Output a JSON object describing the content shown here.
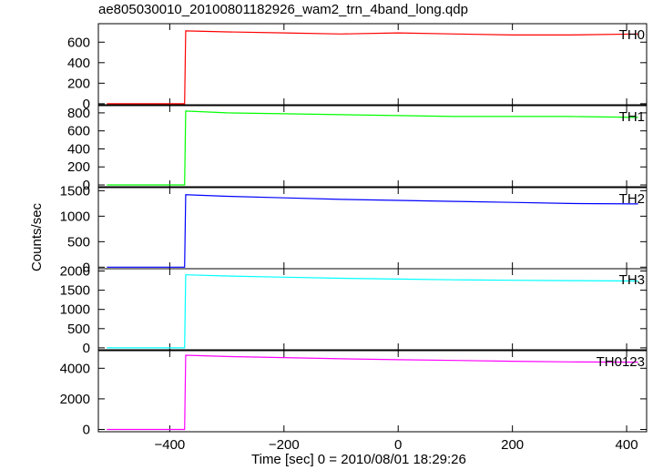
{
  "chart_data": {
    "type": "line",
    "title": "ae805030010_20100801182926_wam2_trn_4band_long.qdp",
    "xlabel": "Time [sec] 0 = 2010/08/01 18:29:26",
    "ylabel": "Counts/sec",
    "xlim": [
      -525,
      435
    ],
    "xticks": [
      -400,
      -200,
      0,
      200,
      400
    ],
    "xtick_labels": [
      "−400",
      "−200",
      "0",
      "200",
      "400"
    ],
    "panels": [
      {
        "name": "TH0",
        "color": "#ff0000",
        "ylim": [
          -10,
          780
        ],
        "yticks": [
          0,
          200,
          400,
          600
        ],
        "points": [
          [
            -510,
            0
          ],
          [
            -374,
            0
          ],
          [
            -372,
            710
          ],
          [
            -300,
            700
          ],
          [
            -200,
            690
          ],
          [
            -100,
            680
          ],
          [
            0,
            690
          ],
          [
            100,
            680
          ],
          [
            200,
            670
          ],
          [
            300,
            670
          ],
          [
            420,
            680
          ]
        ]
      },
      {
        "name": "TH1",
        "color": "#00ff00",
        "ylim": [
          -20,
          880
        ],
        "yticks": [
          0,
          200,
          400,
          600,
          800
        ],
        "points": [
          [
            -510,
            0
          ],
          [
            -374,
            0
          ],
          [
            -372,
            820
          ],
          [
            -300,
            800
          ],
          [
            -200,
            790
          ],
          [
            -100,
            780
          ],
          [
            0,
            770
          ],
          [
            100,
            760
          ],
          [
            200,
            760
          ],
          [
            300,
            760
          ],
          [
            420,
            750
          ]
        ]
      },
      {
        "name": "TH2",
        "color": "#0000ff",
        "ylim": [
          -30,
          1560
        ],
        "yticks": [
          0,
          500,
          1000,
          1500
        ],
        "points": [
          [
            -510,
            0
          ],
          [
            -374,
            0
          ],
          [
            -372,
            1420
          ],
          [
            -300,
            1390
          ],
          [
            -200,
            1360
          ],
          [
            -100,
            1330
          ],
          [
            0,
            1310
          ],
          [
            100,
            1290
          ],
          [
            200,
            1270
          ],
          [
            300,
            1250
          ],
          [
            420,
            1240
          ]
        ]
      },
      {
        "name": "TH3",
        "color": "#00ffff",
        "ylim": [
          -50,
          2060
        ],
        "yticks": [
          0,
          500,
          1000,
          1500,
          2000
        ],
        "points": [
          [
            -510,
            0
          ],
          [
            -374,
            0
          ],
          [
            -372,
            1900
          ],
          [
            -300,
            1870
          ],
          [
            -200,
            1840
          ],
          [
            -100,
            1810
          ],
          [
            0,
            1790
          ],
          [
            100,
            1770
          ],
          [
            200,
            1760
          ],
          [
            300,
            1750
          ],
          [
            420,
            1740
          ]
        ]
      },
      {
        "name": "TH0123",
        "color": "#ff00ff",
        "ylim": [
          -150,
          5150
        ],
        "yticks": [
          0,
          2000,
          4000
        ],
        "points": [
          [
            -510,
            0
          ],
          [
            -374,
            0
          ],
          [
            -372,
            4850
          ],
          [
            -300,
            4770
          ],
          [
            -200,
            4700
          ],
          [
            -100,
            4620
          ],
          [
            0,
            4560
          ],
          [
            100,
            4510
          ],
          [
            200,
            4460
          ],
          [
            300,
            4420
          ],
          [
            420,
            4400
          ]
        ]
      }
    ],
    "grid": false,
    "legend": "none"
  }
}
